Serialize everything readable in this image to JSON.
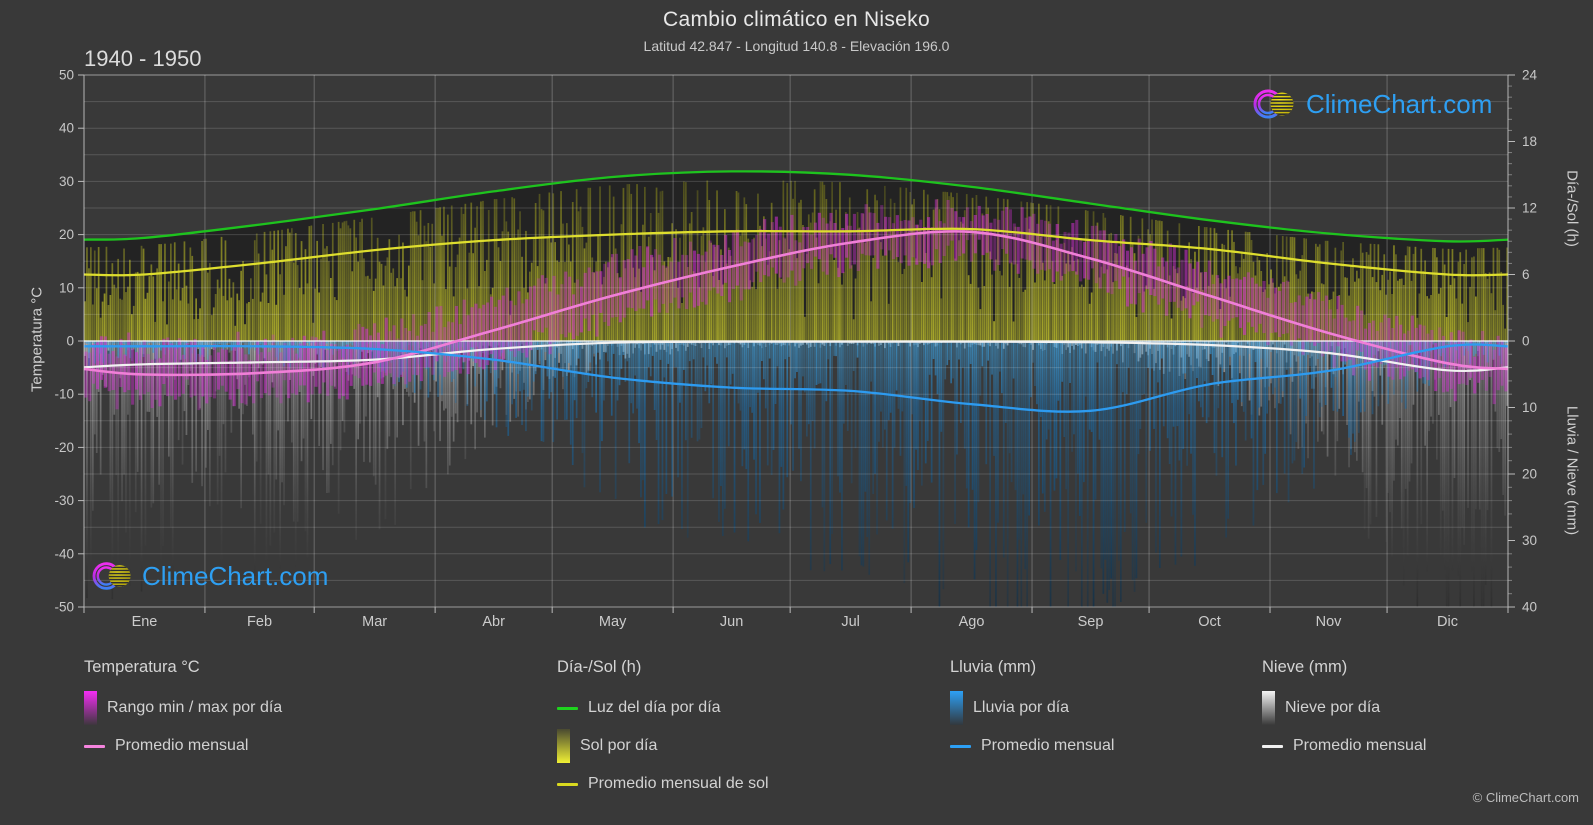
{
  "header": {
    "title": "Cambio climático en Niseko",
    "subtitle": "Latitud 42.847 - Longitud 140.8 - Elevación 196.0",
    "year_range": "1940 - 1950"
  },
  "branding": {
    "logo_text": "ClimeChart.com",
    "copyright": "© ClimeChart.com",
    "brand_blue": "#2e9ff2"
  },
  "axes": {
    "temperature": {
      "title": "Temperatura °C",
      "ticks": [
        50,
        40,
        30,
        20,
        10,
        0,
        -10,
        -20,
        -30,
        -40,
        -50
      ],
      "range": [
        -50,
        50
      ]
    },
    "day_sun": {
      "title": "Día-/Sol (h)",
      "ticks": [
        24,
        18,
        12,
        6,
        0
      ],
      "range": [
        0,
        24
      ]
    },
    "rain_snow": {
      "title": "Lluvia / Nieve (mm)",
      "ticks": [
        0,
        10,
        20,
        30,
        40
      ],
      "range": [
        0,
        40
      ]
    },
    "months": [
      "Ene",
      "Feb",
      "Mar",
      "Abr",
      "May",
      "Jun",
      "Jul",
      "Ago",
      "Sep",
      "Oct",
      "Nov",
      "Dic"
    ]
  },
  "legend": {
    "temperature": {
      "title": "Temperatura °C",
      "items": [
        {
          "swatch": "bar",
          "colors": [
            "#f52df5",
            "rgba(120,25,120,0.08)"
          ],
          "label": "Rango min / max por día"
        },
        {
          "swatch": "line",
          "colors": [
            "#f584de"
          ],
          "label": "Promedio mensual"
        }
      ]
    },
    "day_sun": {
      "title": "Día-/Sol (h)",
      "items": [
        {
          "swatch": "line",
          "colors": [
            "#1ed31e"
          ],
          "label": "Luz del día por día"
        },
        {
          "swatch": "bar",
          "colors": [
            "rgba(110,110,30,0.30)",
            "#f0f034"
          ],
          "label": "Sol por día"
        },
        {
          "swatch": "line",
          "colors": [
            "#d9d91f"
          ],
          "label": "Promedio mensual de sol"
        }
      ]
    },
    "rain": {
      "title": "Lluvia (mm)",
      "items": [
        {
          "swatch": "bar",
          "colors": [
            "#2da0f5",
            "rgba(10,50,90,0.15)"
          ],
          "label": "Lluvia por día"
        },
        {
          "swatch": "line",
          "colors": [
            "#2da0f5"
          ],
          "label": "Promedio mensual"
        }
      ]
    },
    "snow": {
      "title": "Nieve (mm)",
      "items": [
        {
          "swatch": "bar",
          "colors": [
            "#f5f5f5",
            "rgba(60,60,60,0.10)"
          ],
          "label": "Nieve por día"
        },
        {
          "swatch": "line",
          "colors": [
            "#f0f0f0"
          ],
          "label": "Promedio mensual"
        }
      ]
    }
  },
  "chart_data": {
    "type": "composite-climate",
    "title": "Cambio climático en Niseko",
    "period": "1940 - 1950",
    "categories": [
      "Ene",
      "Feb",
      "Mar",
      "Abr",
      "May",
      "Jun",
      "Jul",
      "Ago",
      "Sep",
      "Oct",
      "Nov",
      "Dic"
    ],
    "axis_ranges": {
      "temperature_c": [
        -50,
        50
      ],
      "day_sun_h": [
        0,
        24
      ],
      "rain_snow_mm": [
        0,
        40
      ]
    },
    "grid": true,
    "legend_position": "bottom",
    "series": [
      {
        "name": "Luz del día por día",
        "key": "daylight_h",
        "type": "line",
        "unit": "h",
        "color": "#1ec31e",
        "values": [
          9.3,
          10.5,
          11.9,
          13.5,
          14.8,
          15.3,
          15.0,
          13.9,
          12.4,
          10.9,
          9.7,
          9.0
        ]
      },
      {
        "name": "Sol por día",
        "key": "sun_h",
        "type": "bar",
        "unit": "h",
        "color": "#a8a832",
        "values": [
          6.0,
          7.0,
          8.2,
          9.1,
          9.6,
          9.9,
          9.9,
          10.1,
          9.1,
          8.3,
          7.0,
          6.0
        ]
      },
      {
        "name": "Promedio mensual de sol",
        "key": "sun_avg_h",
        "type": "line",
        "unit": "h",
        "color": "#dede2e",
        "values": [
          6.0,
          7.0,
          8.2,
          9.1,
          9.6,
          9.9,
          9.9,
          10.1,
          9.1,
          8.3,
          7.0,
          6.0
        ]
      },
      {
        "name": "Rango min / max por día",
        "key": "temp_range_c",
        "type": "range-bar",
        "unit": "°C",
        "color": "#d12fd1",
        "min": [
          -10.5,
          -10,
          -8,
          -2.5,
          4,
          10,
          15,
          16.5,
          11,
          4,
          -2.5,
          -9
        ],
        "max": [
          -1.5,
          -1,
          1,
          7.5,
          14,
          19,
          23,
          24.5,
          20,
          13,
          6.5,
          0
        ]
      },
      {
        "name": "Promedio mensual (temperatura)",
        "key": "temp_avg_c",
        "type": "line",
        "unit": "°C",
        "color": "#f07fd7",
        "values": [
          -6.3,
          -6.0,
          -4.0,
          2.0,
          8.5,
          14.0,
          18.5,
          20.5,
          15.5,
          8.5,
          1.5,
          -4.2
        ]
      },
      {
        "name": "Lluvia por día",
        "key": "rain_mm",
        "type": "bar",
        "unit": "mm/día",
        "color": "#1f6fae",
        "values": [
          0.8,
          0.8,
          1.2,
          2.8,
          5.5,
          7.0,
          7.5,
          9.5,
          10.5,
          6.5,
          4.5,
          0.8
        ]
      },
      {
        "name": "Promedio mensual (lluvia)",
        "key": "rain_avg_mm",
        "type": "line",
        "unit": "mm/día",
        "color": "#2d9bf0",
        "values": [
          0.8,
          0.8,
          1.2,
          2.8,
          5.5,
          7.0,
          7.5,
          9.5,
          10.5,
          6.5,
          4.5,
          0.8
        ]
      },
      {
        "name": "Nieve por día",
        "key": "snow_mm",
        "type": "bar",
        "unit": "mm/día",
        "color": "#cfcfcf",
        "values": [
          3.5,
          3.2,
          2.8,
          1.2,
          0.25,
          0.1,
          0.1,
          0.1,
          0.2,
          0.6,
          1.8,
          4.4
        ]
      },
      {
        "name": "Promedio mensual (nieve)",
        "key": "snow_avg_mm",
        "type": "line",
        "unit": "mm/día",
        "color": "#f2f2f2",
        "values": [
          3.5,
          3.2,
          2.8,
          1.2,
          0.25,
          0.1,
          0.1,
          0.1,
          0.2,
          0.6,
          1.8,
          4.4
        ]
      }
    ]
  },
  "colors": {
    "background": "#393939",
    "grid": "rgba(255,255,255,0.16)",
    "grid_vertical": "rgba(255,255,255,0.25)",
    "zero_line": "rgba(255,255,255,0.82)",
    "plot_border": "rgba(255,255,255,0.50)",
    "daylight_fill": "#232323",
    "daylight_line": "#1ec31e",
    "sun_line": "#dede2e",
    "temp_bar": "#d12fd1",
    "temp_line": "#f07fd7",
    "rain_line": "#2d9bf0",
    "snow_line": "#f2f2f2",
    "tick_text": "#c8c8c8",
    "month_text": "#cccccc",
    "tick_mark": "#bbbbbb"
  }
}
